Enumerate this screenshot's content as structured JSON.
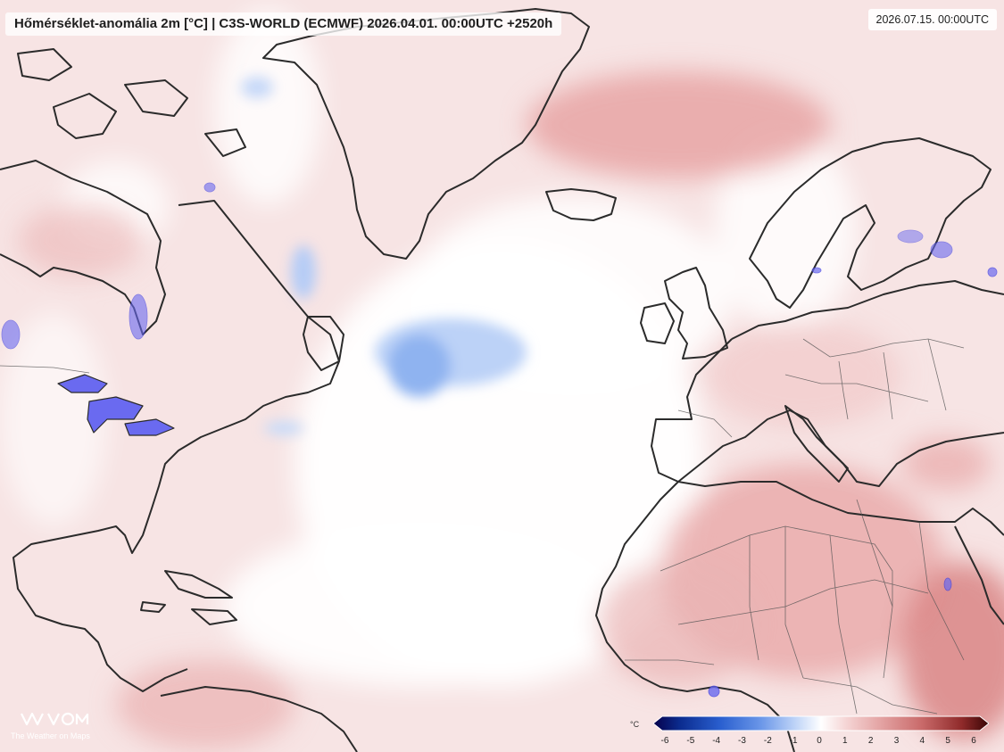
{
  "title": "Hőmérséklet-anomália 2m [°C] | C3S-WORLD (ECMWF) 2026.04.01. 00:00UTC +2520h",
  "valid_time": "2026.07.15. 00:00UTC",
  "brand": {
    "name": "The Weather on Maps",
    "logo_icon": "wom-logo-icon"
  },
  "legend": {
    "unit": "°C",
    "ticks": [
      "-6",
      "-5",
      "-4",
      "-3",
      "-2",
      "-1",
      "0",
      "1",
      "2",
      "3",
      "4",
      "5",
      "6"
    ],
    "colors": [
      "#06004a",
      "#0b2c8f",
      "#2a5fcf",
      "#6a96e8",
      "#a8c4f4",
      "#dbe6fb",
      "#ffffff",
      "#f6d9d9",
      "#eab3b3",
      "#d98989",
      "#c05f5f",
      "#952d2d",
      "#4a0a0a"
    ]
  },
  "colors": {
    "background_warm": "#f7e4e4",
    "ocean_neutral": "#ffffff",
    "cold_anomaly": "#9cbdf3",
    "warm_anomaly": "#e39c9c",
    "coastline": "#2b2b2b",
    "lakes": "#5b5bf0"
  }
}
